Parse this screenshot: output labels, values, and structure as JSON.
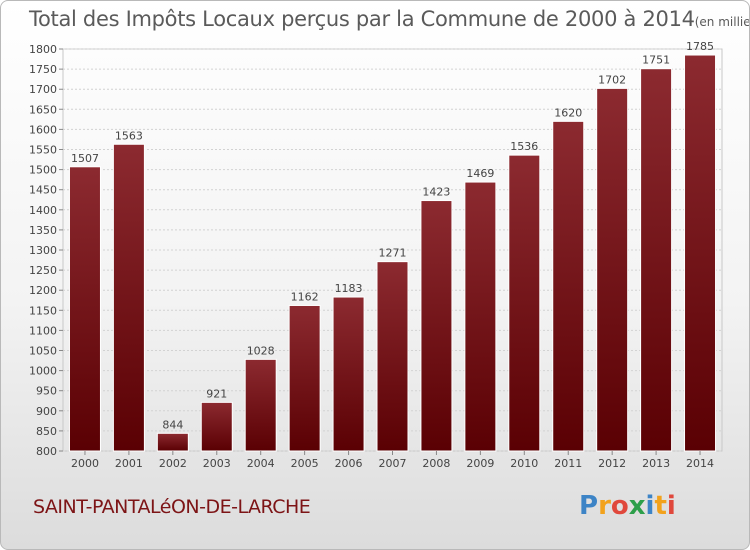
{
  "header": {
    "title": "Total des Impôts Locaux perçus par la Commune de 2000 à 2014",
    "unit": "(en milliers d'€)"
  },
  "footer": {
    "commune": "SAINT-PANTALéON-DE-LARCHE",
    "logo_text": "Proxiti"
  },
  "colors": {
    "bar_top": "#8c2a30",
    "bar_bottom": "#5a0003",
    "commune_text": "#7d1416",
    "title_text": "#5a5a5a"
  },
  "chart_data": {
    "type": "bar",
    "title": "Total des Impôts Locaux perçus par la Commune de 2000 à 2014",
    "subtitle": "(en milliers d'€)",
    "xlabel": "",
    "ylabel": "",
    "categories": [
      "2000",
      "2001",
      "2002",
      "2003",
      "2004",
      "2005",
      "2006",
      "2007",
      "2008",
      "2009",
      "2010",
      "2011",
      "2012",
      "2013",
      "2014"
    ],
    "values": [
      1507,
      1563,
      844,
      921,
      1028,
      1162,
      1183,
      1271,
      1423,
      1469,
      1536,
      1620,
      1702,
      1751,
      1785
    ],
    "ylim": [
      800,
      1800
    ],
    "yticks": [
      800,
      850,
      900,
      950,
      1000,
      1050,
      1100,
      1150,
      1200,
      1250,
      1300,
      1350,
      1400,
      1450,
      1500,
      1550,
      1600,
      1650,
      1700,
      1750,
      1800
    ],
    "grid": true,
    "legend": "none",
    "data_labels": true
  }
}
